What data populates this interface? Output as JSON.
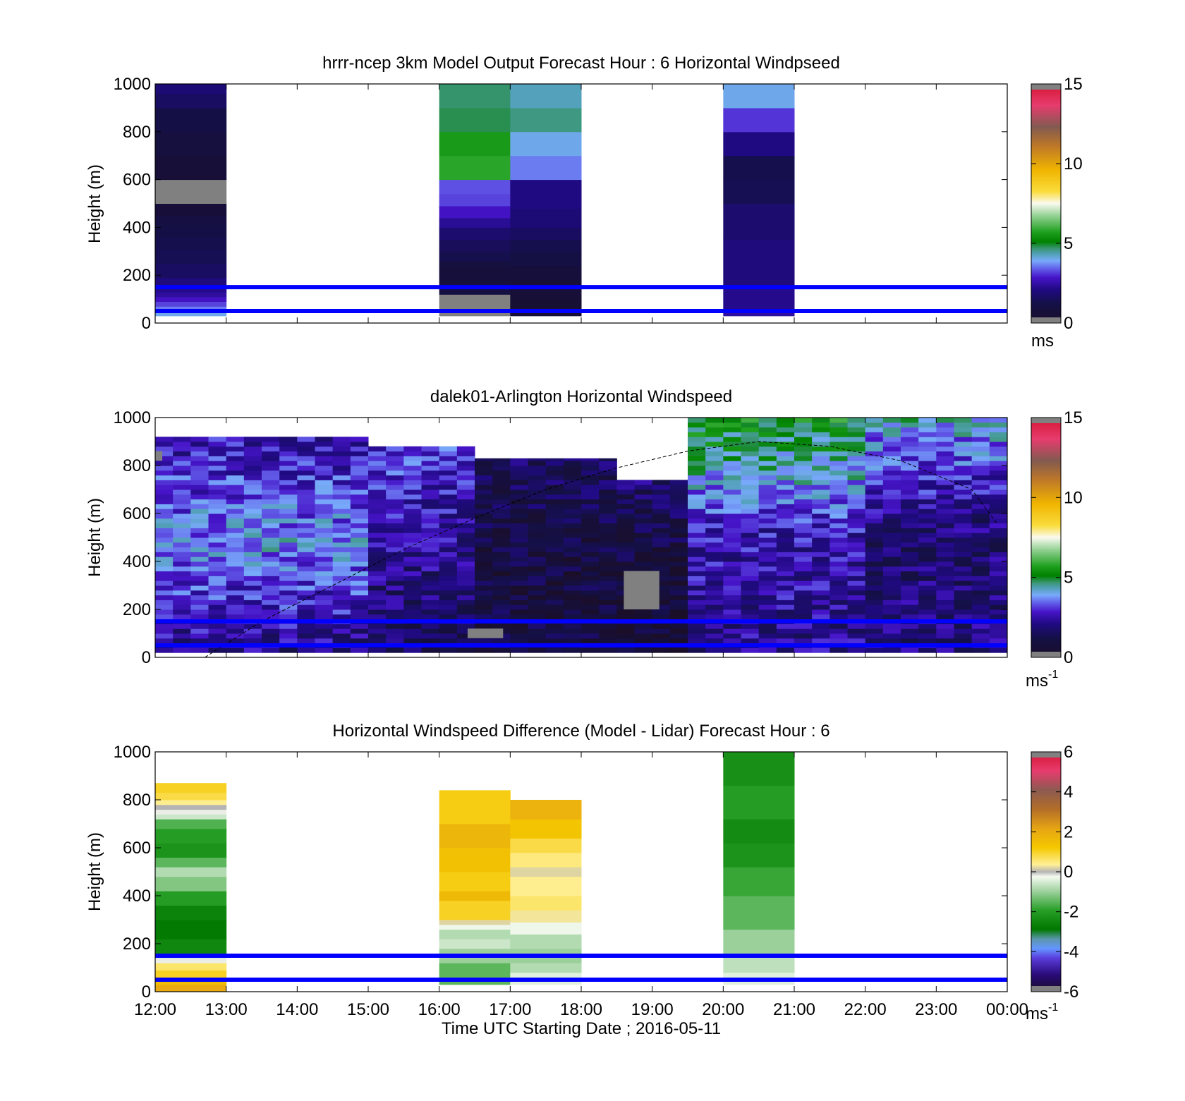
{
  "figure": {
    "xlabel": "Time UTC  Starting Date ; 2016-05-11",
    "x_tick_labels": [
      "12:00",
      "13:00",
      "14:00",
      "15:00",
      "16:00",
      "17:00",
      "18:00",
      "19:00",
      "20:00",
      "21:00",
      "22:00",
      "23:00",
      "00:00"
    ]
  },
  "chart_data": [
    {
      "type": "heatmap",
      "title": "hrrr-ncep 3km Model Output   Forecast Hour : 6 Horizontal Windpseed",
      "ylabel": "Height (m)",
      "ylim": [
        0,
        1000
      ],
      "xlim_hours": [
        12,
        24
      ],
      "y_ticks": [
        0,
        200,
        400,
        600,
        800,
        1000
      ],
      "colorbar": {
        "min": 0,
        "max": 15,
        "ticks": [
          0,
          5,
          10,
          15
        ],
        "unit": "ms",
        "unit_superscript": ""
      },
      "colormap": "windspeed",
      "reference_lines_m": [
        50,
        150
      ],
      "reference_line_color": "#0000ff",
      "columns": [
        {
          "x_start": 12,
          "x_end": 13,
          "levels": [
            [
              30,
              50,
              4.0
            ],
            [
              50,
              70,
              3.6
            ],
            [
              70,
              90,
              3.2
            ],
            [
              90,
              110,
              2.8
            ],
            [
              110,
              130,
              2.4
            ],
            [
              130,
              150,
              2.2
            ],
            [
              150,
              190,
              2.0
            ],
            [
              190,
              250,
              1.6
            ],
            [
              250,
              310,
              1.4
            ],
            [
              310,
              360,
              1.3
            ],
            [
              360,
              410,
              1.2
            ],
            [
              410,
              450,
              1.0
            ],
            [
              450,
              500,
              0.7
            ],
            [
              500,
              600,
              -1
            ],
            [
              600,
              700,
              0.6
            ],
            [
              700,
              800,
              0.9
            ],
            [
              800,
              900,
              1.2
            ],
            [
              900,
              960,
              1.6
            ],
            [
              960,
              1000,
              1.9
            ]
          ]
        },
        {
          "x_start": 16,
          "x_end": 17,
          "levels": [
            [
              30,
              50,
              -1
            ],
            [
              50,
              120,
              -1
            ],
            [
              120,
              170,
              1.0
            ],
            [
              170,
              230,
              0.8
            ],
            [
              230,
              260,
              0.9
            ],
            [
              260,
              300,
              1.3
            ],
            [
              300,
              350,
              1.5
            ],
            [
              350,
              400,
              1.8
            ],
            [
              400,
              440,
              2.3
            ],
            [
              440,
              490,
              2.8
            ],
            [
              490,
              540,
              3.2
            ],
            [
              540,
              600,
              3.3
            ],
            [
              600,
              700,
              5.8
            ],
            [
              700,
              800,
              5.6
            ],
            [
              800,
              900,
              4.8
            ],
            [
              900,
              1000,
              4.7
            ]
          ]
        },
        {
          "x_start": 17,
          "x_end": 18,
          "levels": [
            [
              30,
              110,
              0.5
            ],
            [
              110,
              180,
              0.6
            ],
            [
              180,
              240,
              0.8
            ],
            [
              240,
              300,
              1.1
            ],
            [
              300,
              350,
              1.3
            ],
            [
              350,
              400,
              1.6
            ],
            [
              400,
              480,
              1.9
            ],
            [
              480,
              600,
              2.1
            ],
            [
              600,
              700,
              3.6
            ],
            [
              700,
              800,
              4.0
            ],
            [
              800,
              900,
              4.6
            ],
            [
              900,
              1000,
              4.3
            ]
          ]
        },
        {
          "x_start": 20,
          "x_end": 21,
          "levels": [
            [
              30,
              50,
              2.4
            ],
            [
              50,
              150,
              2.2
            ],
            [
              150,
              350,
              2.0
            ],
            [
              350,
              500,
              1.8
            ],
            [
              500,
              600,
              1.4
            ],
            [
              600,
              700,
              1.3
            ],
            [
              700,
              800,
              2.1
            ],
            [
              800,
              900,
              3.1
            ],
            [
              900,
              1000,
              4.0
            ]
          ]
        }
      ]
    },
    {
      "type": "heatmap",
      "title": "dalek01-Arlington  Horizontal Windspeed",
      "ylabel": "Height (m)",
      "ylim": [
        0,
        1000
      ],
      "xlim_hours": [
        12,
        24
      ],
      "y_ticks": [
        0,
        200,
        400,
        600,
        800,
        1000
      ],
      "colorbar": {
        "min": 0,
        "max": 15,
        "ticks": [
          0,
          5,
          10,
          15
        ],
        "unit": "ms",
        "unit_superscript": "-1"
      },
      "colormap": "windspeed",
      "reference_lines_m": [
        50,
        150
      ],
      "reference_line_color": "#0000ff",
      "data_extent_hours": [
        12,
        23.85
      ],
      "approx_time_step_min": 15,
      "boundary_layer_curve": {
        "x_hours": [
          12.7,
          13.5,
          14.5,
          15.5,
          16.5,
          17.5,
          18.5,
          19.5,
          20.5,
          21.5,
          22.5,
          23.5,
          23.85
        ],
        "y_m": [
          0,
          150,
          300,
          450,
          580,
          700,
          790,
          860,
          900,
          880,
          820,
          700,
          560
        ]
      },
      "profile_regimes": [
        {
          "x_start": 12.0,
          "x_end": 14.8,
          "low": 2.0,
          "mid": 3.8,
          "high": 2.5,
          "top_m": 920
        },
        {
          "x_start": 14.8,
          "x_end": 16.5,
          "low": 1.4,
          "mid": 2.3,
          "high": 3.2,
          "top_m": 880
        },
        {
          "x_start": 16.5,
          "x_end": 18.5,
          "low": 1.0,
          "mid": 0.9,
          "high": 1.6,
          "top_m": 830
        },
        {
          "x_start": 18.5,
          "x_end": 19.4,
          "low": 0.6,
          "mid": 0.8,
          "high": 1.8,
          "top_m": 740
        },
        {
          "x_start": 19.4,
          "x_end": 22.0,
          "low": 2.2,
          "mid": 2.6,
          "high": 5.4,
          "top_m": 1000
        },
        {
          "x_start": 22.0,
          "x_end": 23.85,
          "low": 2.0,
          "mid": 1.8,
          "high": 4.2,
          "top_m": 1000
        }
      ],
      "missing_patches": [
        {
          "x_start": 18.6,
          "x_end": 19.1,
          "y_start": 200,
          "y_end": 360
        },
        {
          "x_start": 16.4,
          "x_end": 16.9,
          "y_start": 80,
          "y_end": 120
        },
        {
          "x_start": 12.0,
          "x_end": 12.1,
          "y_start": 820,
          "y_end": 860
        }
      ]
    },
    {
      "type": "heatmap",
      "title": "Horizontal Windspeed Difference (Model - Lidar) Forecast Hour : 6",
      "ylabel": "Height (m)",
      "ylim": [
        0,
        1000
      ],
      "xlim_hours": [
        12,
        24
      ],
      "y_ticks": [
        0,
        200,
        400,
        600,
        800,
        1000
      ],
      "colorbar": {
        "min": -6,
        "max": 6,
        "ticks": [
          -6,
          -4,
          -2,
          0,
          2,
          4,
          6
        ],
        "unit": "ms",
        "unit_superscript": "-1"
      },
      "colormap": "difference",
      "reference_lines_m": [
        50,
        150
      ],
      "reference_line_color": "#0000ff",
      "columns": [
        {
          "x_start": 12,
          "x_end": 13,
          "levels": [
            [
              0,
              30,
              2.0
            ],
            [
              30,
              60,
              1.5
            ],
            [
              60,
              90,
              1.0
            ],
            [
              90,
              120,
              0.6
            ],
            [
              120,
              140,
              -0.2
            ],
            [
              140,
              160,
              -0.5
            ],
            [
              160,
              220,
              -2.5
            ],
            [
              220,
              300,
              -2.8
            ],
            [
              300,
              360,
              -2.6
            ],
            [
              360,
              420,
              -2.0
            ],
            [
              420,
              480,
              -1.2
            ],
            [
              480,
              520,
              -0.8
            ],
            [
              520,
              560,
              -1.5
            ],
            [
              560,
              620,
              -2.2
            ],
            [
              620,
              680,
              -2.0
            ],
            [
              680,
              720,
              -1.6
            ],
            [
              720,
              740,
              -0.6
            ],
            [
              740,
              760,
              -0.2
            ],
            [
              760,
              780,
              0
            ],
            [
              780,
              800,
              0.4
            ],
            [
              800,
              830,
              0.8
            ],
            [
              830,
              870,
              1.0
            ]
          ]
        },
        {
          "x_start": 16,
          "x_end": 17,
          "levels": [
            [
              30,
              120,
              -1.5
            ],
            [
              120,
              180,
              -1.0
            ],
            [
              180,
              220,
              -0.6
            ],
            [
              220,
              260,
              -0.8
            ],
            [
              260,
              280,
              -0.3
            ],
            [
              280,
              300,
              0.2
            ],
            [
              300,
              380,
              1.0
            ],
            [
              380,
              420,
              1.6
            ],
            [
              420,
              500,
              1.1
            ],
            [
              500,
              600,
              1.4
            ],
            [
              600,
              700,
              1.7
            ],
            [
              700,
              840,
              1.1
            ]
          ]
        },
        {
          "x_start": 17,
          "x_end": 18,
          "levels": [
            [
              30,
              80,
              -0.4
            ],
            [
              80,
              120,
              -0.8
            ],
            [
              120,
              180,
              -1.0
            ],
            [
              180,
              240,
              -0.8
            ],
            [
              240,
              290,
              -0.3
            ],
            [
              290,
              340,
              0.3
            ],
            [
              340,
              400,
              0.6
            ],
            [
              400,
              480,
              0.4
            ],
            [
              480,
              520,
              0.2
            ],
            [
              520,
              580,
              0.5
            ],
            [
              580,
              640,
              0.8
            ],
            [
              640,
              720,
              1.3
            ],
            [
              720,
              800,
              1.8
            ]
          ]
        },
        {
          "x_start": 20,
          "x_end": 21,
          "levels": [
            [
              30,
              80,
              -0.4
            ],
            [
              80,
              150,
              -0.7
            ],
            [
              150,
              260,
              -1.0
            ],
            [
              260,
              400,
              -1.5
            ],
            [
              400,
              520,
              -1.8
            ],
            [
              520,
              620,
              -2.2
            ],
            [
              620,
              720,
              -2.4
            ],
            [
              720,
              860,
              -2.0
            ],
            [
              860,
              1000,
              -2.3
            ]
          ]
        }
      ]
    }
  ]
}
